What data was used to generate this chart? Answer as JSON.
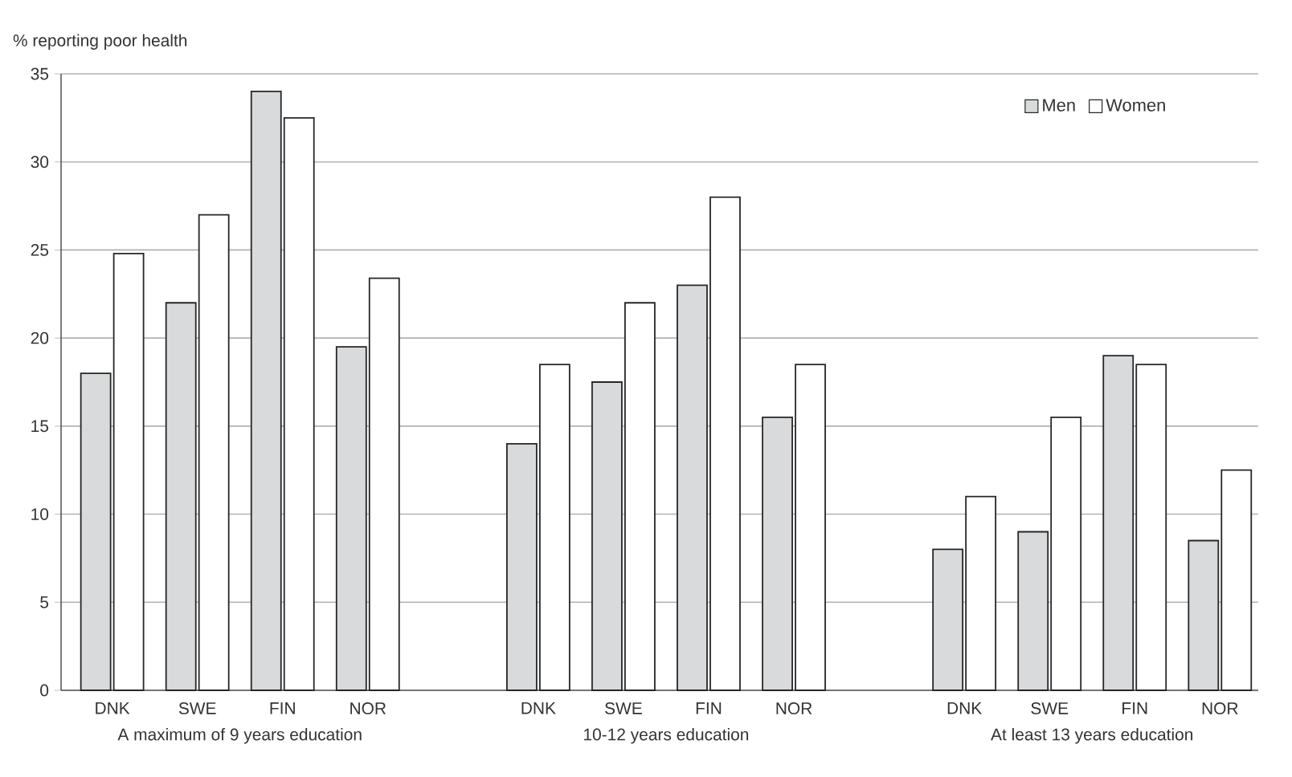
{
  "chart_data": {
    "type": "bar",
    "ylabel": "% reporting poor health",
    "categories": [
      "DNK",
      "SWE",
      "FIN",
      "NOR",
      null,
      "DNK",
      "SWE",
      "FIN",
      "NOR",
      null,
      "DNK",
      "SWE",
      "FIN",
      "NOR"
    ],
    "series": [
      {
        "name": "Men",
        "color": "#d9dadb",
        "values": [
          18,
          22,
          34,
          19.5,
          null,
          14,
          17.5,
          23,
          15.5,
          null,
          8,
          9,
          19,
          8.5
        ]
      },
      {
        "name": "Women",
        "color": "#ffffff",
        "values": [
          24.8,
          27,
          32.5,
          23.4,
          null,
          18.5,
          22,
          28,
          18.5,
          null,
          11,
          15.5,
          18.5,
          12.5
        ]
      }
    ],
    "annotations": [
      "A maximum of 9 years education",
      "10-12 years education",
      "At least 13 years education"
    ],
    "ylim": [
      0,
      35
    ],
    "yticks": [
      0,
      5,
      10,
      15,
      20,
      25,
      30,
      35
    ],
    "grid": "y",
    "legend": "top right"
  }
}
